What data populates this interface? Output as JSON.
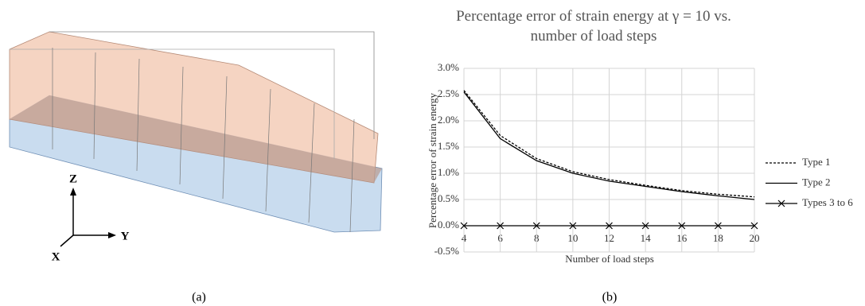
{
  "panels": {
    "a": "(a)",
    "b": "(b)"
  },
  "diagram": {
    "axes": {
      "z": "Z",
      "y": "Y",
      "x": "X"
    }
  },
  "chart_data": {
    "type": "line",
    "title": "Percentage error of strain energy at γ = 10 vs. number of load steps",
    "x_label": "Number of load steps",
    "y_label": "Percentage error of strain energy",
    "x": [
      4,
      6,
      8,
      10,
      12,
      14,
      16,
      18,
      20
    ],
    "xlim": [
      4,
      20
    ],
    "xticks": [
      4,
      6,
      8,
      10,
      12,
      14,
      16,
      18,
      20
    ],
    "ylim": [
      -0.5,
      3.0
    ],
    "yticks": [
      {
        "value": -0.5,
        "label": "-0.5%"
      },
      {
        "value": 0.0,
        "label": "0.0%"
      },
      {
        "value": 0.5,
        "label": "0.5%"
      },
      {
        "value": 1.0,
        "label": "1.0%"
      },
      {
        "value": 1.5,
        "label": "1.5%"
      },
      {
        "value": 2.0,
        "label": "2.0%"
      },
      {
        "value": 2.5,
        "label": "2.5%"
      },
      {
        "value": 3.0,
        "label": "3.0%"
      }
    ],
    "grid": true,
    "legend": "right",
    "series": [
      {
        "name": "Type 1",
        "color": "#000000",
        "dash": "dashed",
        "marker": "none",
        "values": [
          2.58,
          1.72,
          1.28,
          1.03,
          0.88,
          0.77,
          0.67,
          0.6,
          0.55
        ]
      },
      {
        "name": "Type 2",
        "color": "#000000",
        "dash": "solid",
        "marker": "none",
        "values": [
          2.55,
          1.66,
          1.24,
          1.0,
          0.85,
          0.75,
          0.65,
          0.57,
          0.5
        ]
      },
      {
        "name": "Types 3 to 6",
        "color": "#000000",
        "dash": "solid",
        "marker": "x",
        "values": [
          0,
          0,
          0,
          0,
          0,
          0,
          0,
          0,
          0
        ]
      }
    ]
  }
}
